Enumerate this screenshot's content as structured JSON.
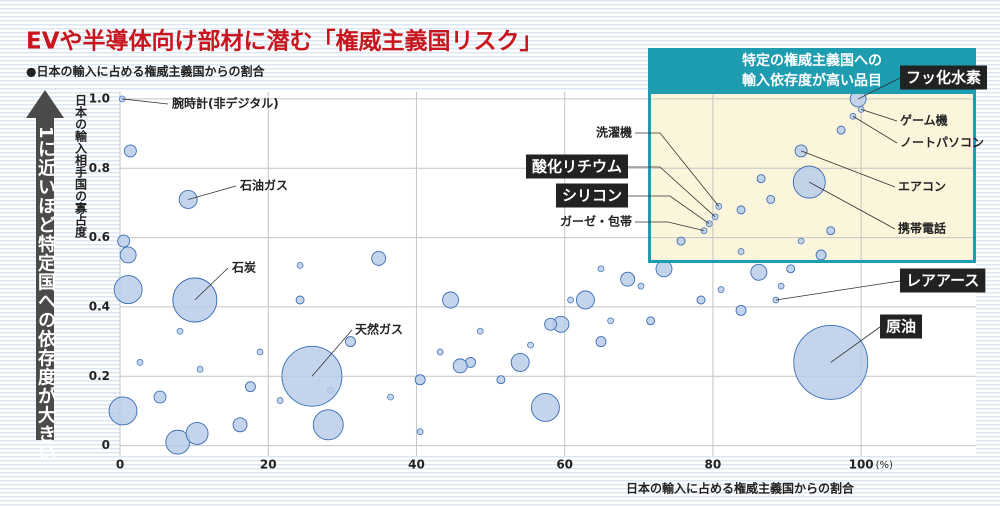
{
  "chart_data": {
    "type": "bubble",
    "title": "EVや半導体向け部材に潜む「権威主義国リスク」",
    "subtitle": "●日本の輸入に占める権威主義国からの割合",
    "side_note": "1に近いほど特定国への依存度が大きい",
    "y_label": "日本の輸入相手国の寡占度",
    "x_label": "日本の輸入に占める権威主義国からの割合",
    "x_unit": "(%)",
    "xlim": [
      0,
      115.5
    ],
    "ylim": [
      -0.03,
      1.02
    ],
    "xticks": [
      0,
      20,
      40,
      60,
      80,
      100
    ],
    "yticks": [
      0,
      0.2,
      0.4,
      0.6,
      0.8,
      {
        "value": 1,
        "label": "1.0"
      }
    ],
    "grid": true,
    "color": "#b9cce9",
    "edge_color": "#3a6db5",
    "highlight_box": {
      "lines": [
        "特定の権威主義国への",
        "輸入依存度が高い品目"
      ],
      "color": "#1e9cb0"
    },
    "annotations": [
      {
        "text": "腕時計(非デジタル)",
        "x": 0.3,
        "y": 1.0,
        "size": 3,
        "boxed": false
      },
      {
        "text": "石油ガス",
        "x": 9.2,
        "y": 0.71,
        "size": 9,
        "boxed": false
      },
      {
        "text": "石炭",
        "x": 10.1,
        "y": 0.42,
        "size": 22,
        "boxed": false
      },
      {
        "text": "天然ガス",
        "x": 25.9,
        "y": 0.2,
        "size": 30,
        "boxed": false
      },
      {
        "text": "原油",
        "x": 95.9,
        "y": 0.24,
        "size": 37,
        "boxed": true
      },
      {
        "text": "レアアース",
        "x": 88.5,
        "y": 0.42,
        "size": 3,
        "boxed": true
      },
      {
        "text": "フッ化水素",
        "x": 99.6,
        "y": 1.0,
        "size": 8,
        "boxed": true
      },
      {
        "text": "ゲーム機",
        "x": 100.0,
        "y": 0.97,
        "size": 3,
        "boxed": false
      },
      {
        "text": "ノートパソコン",
        "x": 98.9,
        "y": 0.95,
        "size": 3,
        "boxed": false
      },
      {
        "text": "エアコン",
        "x": 91.9,
        "y": 0.85,
        "size": 6,
        "boxed": false
      },
      {
        "text": "携帯電話",
        "x": 93.0,
        "y": 0.76,
        "size": 16,
        "boxed": false
      },
      {
        "text": "洗濯機",
        "x": 80.8,
        "y": 0.69,
        "size": 3,
        "boxed": false
      },
      {
        "text": "酸化リチウム",
        "x": 80.3,
        "y": 0.66,
        "size": 3,
        "boxed": true
      },
      {
        "text": "シリコン",
        "x": 79.5,
        "y": 0.64,
        "size": 3,
        "boxed": true
      },
      {
        "text": "ガーゼ・包帯",
        "x": 78.8,
        "y": 0.62,
        "size": 3,
        "boxed": false
      }
    ],
    "x": [
      1.1,
      0.4,
      7.8,
      10.4,
      28.1,
      57.4,
      86.2,
      34.9,
      62.8,
      54.0,
      44.6,
      59.5,
      16.2,
      73.4,
      68.5,
      1.4,
      0.5,
      1.1,
      5.4,
      17.6,
      24.3,
      31.1,
      40.5,
      47.3,
      51.4,
      64.9,
      71.6,
      78.4,
      83.8,
      90.5,
      94.6,
      87.8,
      86.5,
      83.8,
      95.9,
      97.3,
      75.7,
      45.9,
      58.1,
      10.8,
      21.6,
      28.4,
      36.5,
      43.2,
      48.6,
      55.4,
      60.8,
      66.2,
      70.3,
      81.1,
      89.2,
      18.9,
      8.1,
      2.7,
      24.3,
      40.5,
      64.9,
      83.8,
      91.9
    ],
    "values": [
      0.45,
      0.1,
      0.01,
      0.035,
      0.06,
      0.11,
      0.5,
      0.54,
      0.42,
      0.24,
      0.42,
      0.35,
      0.06,
      0.51,
      0.48,
      0.85,
      0.59,
      0.55,
      0.14,
      0.17,
      0.42,
      0.3,
      0.19,
      0.24,
      0.19,
      0.3,
      0.36,
      0.42,
      0.39,
      0.51,
      0.55,
      0.71,
      0.77,
      0.68,
      0.62,
      0.91,
      0.59,
      0.23,
      0.35,
      0.22,
      0.13,
      0.16,
      0.14,
      0.27,
      0.33,
      0.29,
      0.42,
      0.36,
      0.46,
      0.45,
      0.46,
      0.27,
      0.33,
      0.24,
      0.52,
      0.04,
      0.51,
      0.56,
      0.59
    ],
    "sizes": [
      14,
      14,
      12,
      11,
      15,
      14,
      8,
      7,
      9,
      9,
      8,
      8,
      7,
      8,
      7,
      6,
      6,
      8,
      6,
      5,
      4,
      5,
      5,
      5,
      4,
      5,
      4,
      4,
      5,
      4,
      5,
      4,
      4,
      4,
      4,
      4,
      4,
      7,
      6,
      3,
      3,
      3,
      3,
      3,
      3,
      3,
      3,
      3,
      3,
      3,
      3,
      3,
      3,
      3,
      3,
      3,
      3,
      3,
      3
    ]
  }
}
